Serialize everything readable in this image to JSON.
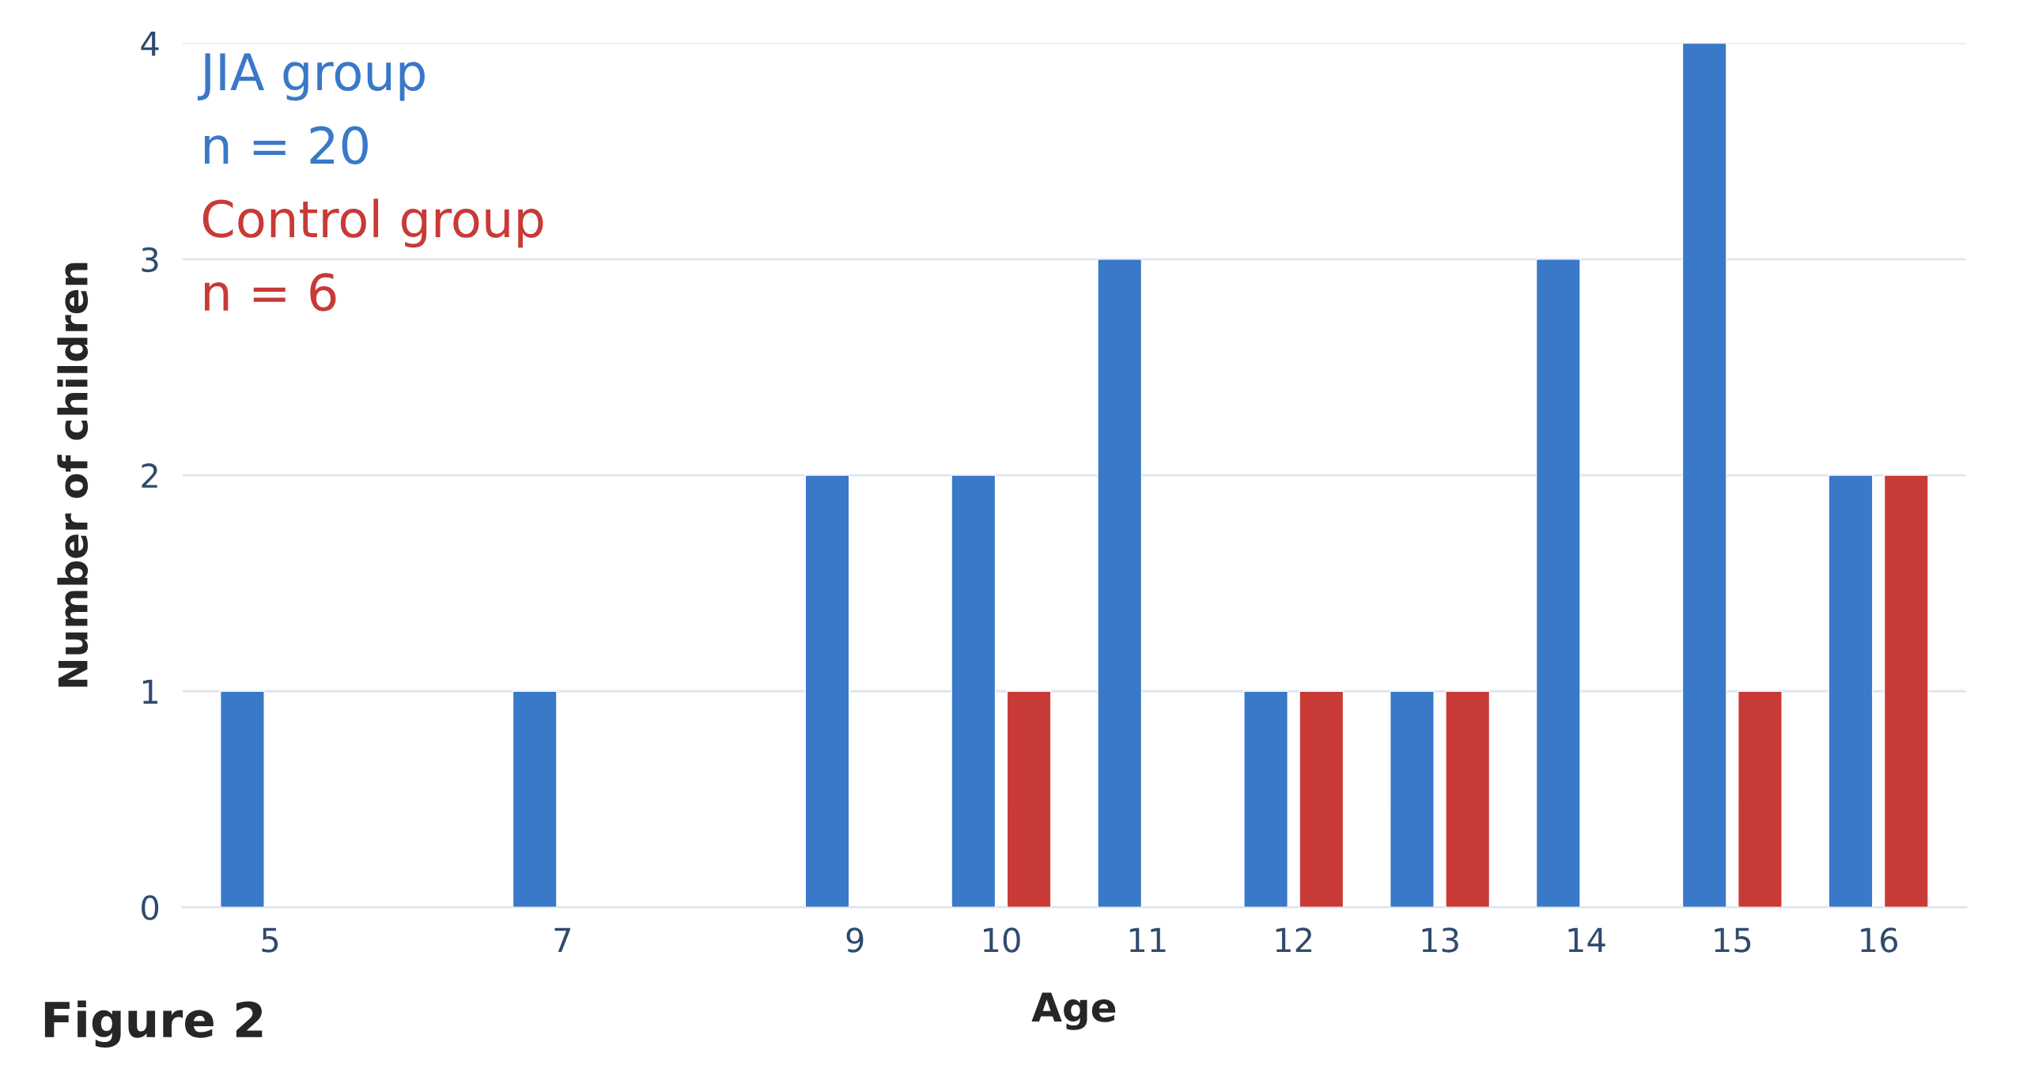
{
  "chart_data": {
    "type": "bar",
    "xlabel": "Age",
    "ylabel": "Number of children",
    "categories": [
      "5",
      null,
      "7",
      null,
      "9",
      "10",
      "11",
      "12",
      "13",
      "14",
      "15",
      "16"
    ],
    "series": [
      {
        "name": "JIA group",
        "color": "#3a78c8",
        "values": [
          1,
          null,
          1,
          null,
          2,
          2,
          3,
          1,
          1,
          3,
          4,
          2
        ]
      },
      {
        "name": "Control group",
        "color": "#c83a36",
        "values": [
          null,
          null,
          null,
          null,
          null,
          1,
          null,
          1,
          1,
          null,
          1,
          2
        ]
      }
    ],
    "ylim": [
      0,
      4
    ],
    "yticks": [
      0,
      1,
      2,
      3,
      4
    ],
    "grid": "y",
    "legend": "top left",
    "annotations": [
      "n = 20",
      "n = 6",
      "Figure 2"
    ]
  }
}
